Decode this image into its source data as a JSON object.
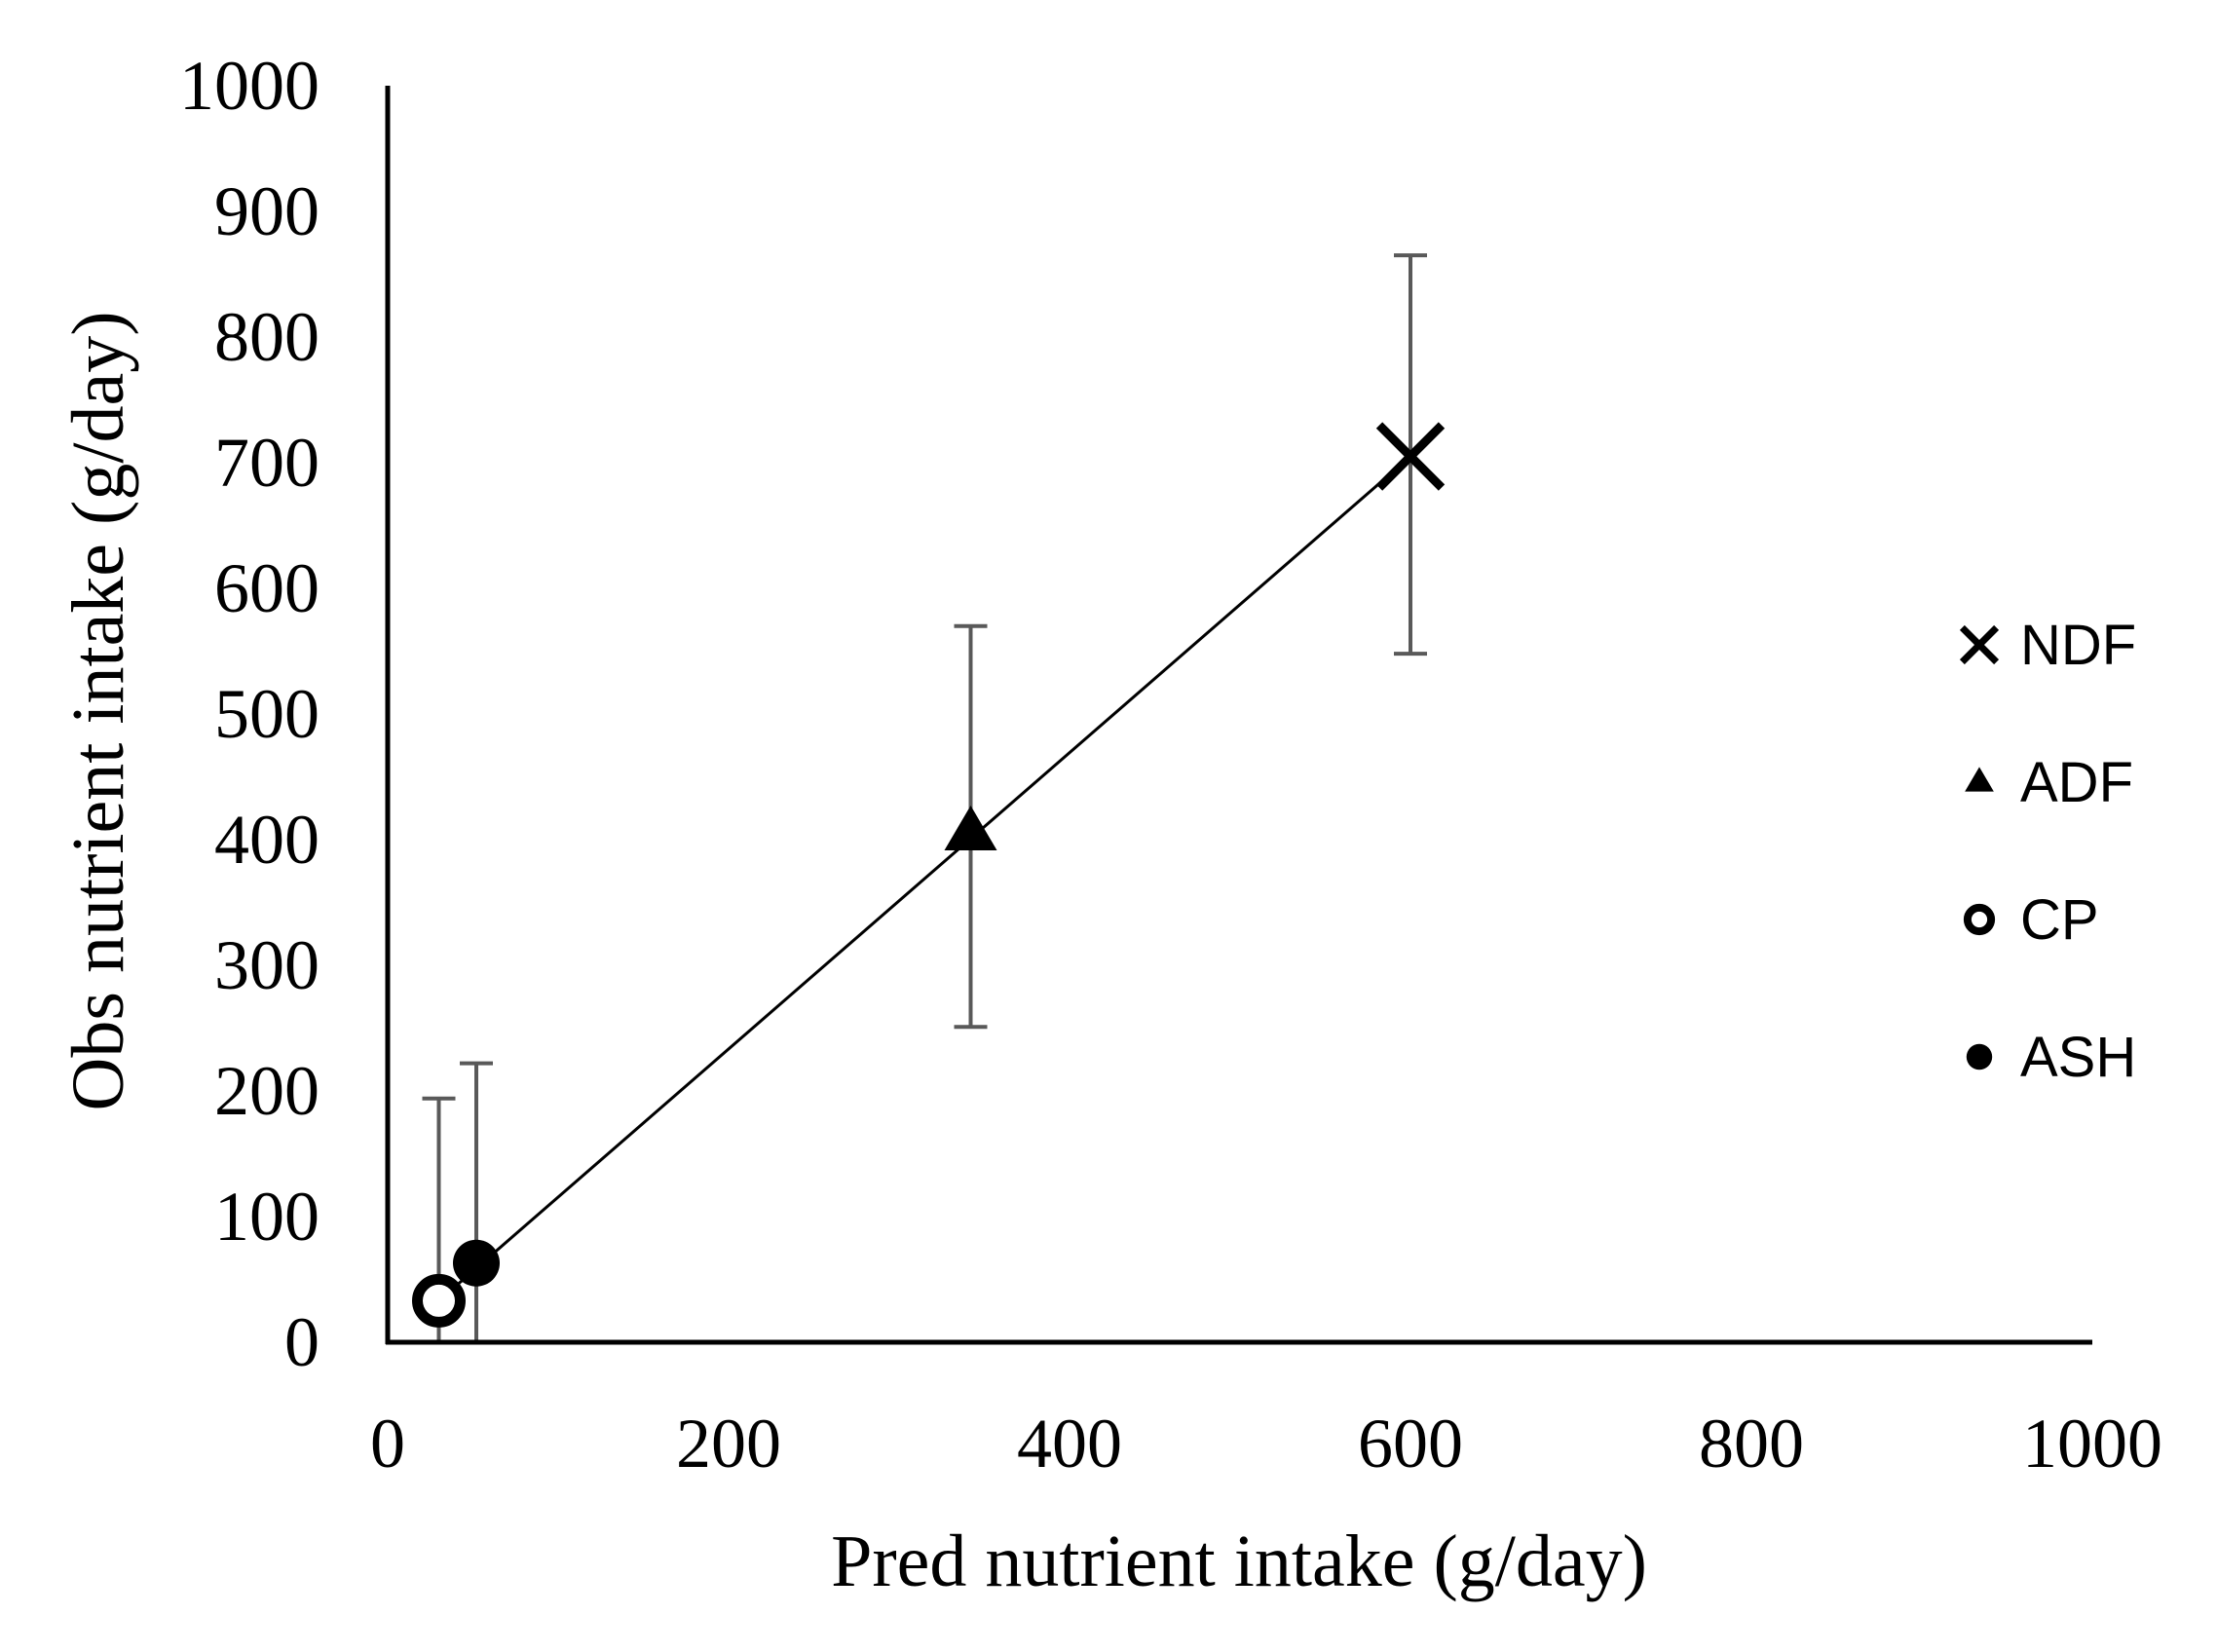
{
  "chart_data": {
    "type": "scatter",
    "title": "",
    "xlabel": "Pred nutrient intake (g/day)",
    "ylabel": "Obs nutrient intake (g/day)",
    "xlim": [
      0,
      1000
    ],
    "ylim": [
      0,
      1000
    ],
    "x_ticks": [
      "0",
      "200",
      "400",
      "600",
      "800",
      "1000"
    ],
    "y_ticks": [
      "0",
      "100",
      "200",
      "300",
      "400",
      "500",
      "600",
      "700",
      "800",
      "900",
      "1000"
    ],
    "grid": false,
    "legend_position": "right",
    "series": [
      {
        "name": "NDF",
        "marker": "x",
        "x": 600,
        "y": 705,
        "err_low": 548,
        "err_high": 865
      },
      {
        "name": "ADF",
        "marker": "triangle",
        "x": 342,
        "y": 405,
        "err_low": 251,
        "err_high": 570
      },
      {
        "name": "CP",
        "marker": "open-circle",
        "x": 30,
        "y": 33,
        "err_low": 0,
        "err_high": 194
      },
      {
        "name": "ASH",
        "marker": "filled-circle",
        "x": 52,
        "y": 63,
        "err_low": 0,
        "err_high": 222
      }
    ],
    "fit_line": {
      "x": [
        30,
        600
      ],
      "y": [
        33,
        705
      ]
    },
    "colors": {
      "axis": "#000000",
      "error_bar": "#595959",
      "marker": "#000000",
      "line": "#000000"
    }
  }
}
